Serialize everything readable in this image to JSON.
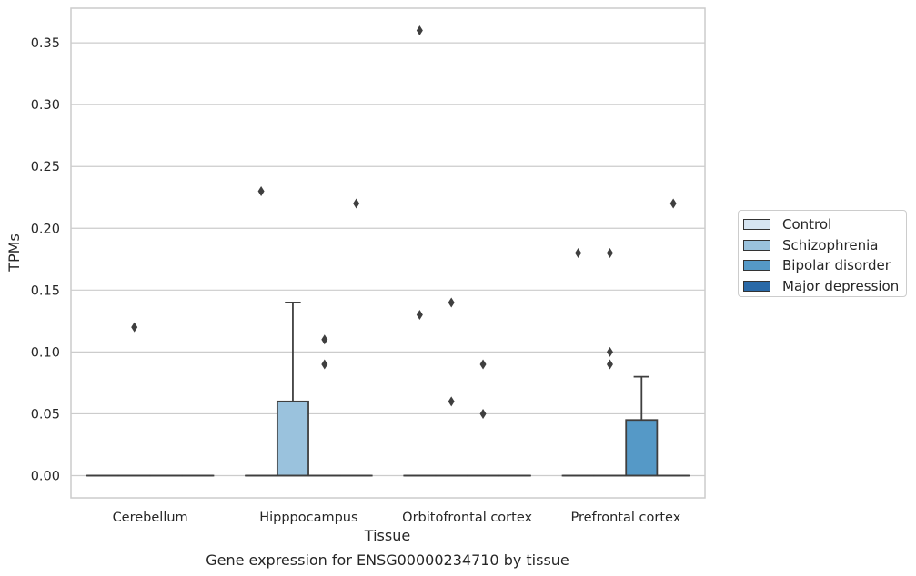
{
  "chart_data": {
    "type": "box",
    "title": "",
    "caption": "Gene expression for ENSG00000234710 by tissue",
    "xlabel": "Tissue",
    "ylabel": "TPMs",
    "ylim": [
      -0.018,
      0.378
    ],
    "yticks": [
      "0.00",
      "0.05",
      "0.10",
      "0.15",
      "0.20",
      "0.25",
      "0.30",
      "0.35"
    ],
    "categories": [
      "Cerebellum",
      "Hipppocampus",
      "Orbitofrontal cortex",
      "Prefrontal cortex"
    ],
    "grid": "horizontal",
    "legend_placement": "right",
    "series": [
      {
        "name": "Control",
        "color": "#d6e5f2",
        "boxes": [
          {
            "q1": 0,
            "median": 0,
            "q3": 0,
            "whisker_low": 0,
            "whisker_high": 0,
            "outliers": []
          },
          {
            "q1": 0,
            "median": 0,
            "q3": 0,
            "whisker_low": 0,
            "whisker_high": 0,
            "outliers": [
              0.23
            ]
          },
          {
            "q1": 0,
            "median": 0,
            "q3": 0,
            "whisker_low": 0,
            "whisker_high": 0,
            "outliers": [
              0.36,
              0.13
            ]
          },
          {
            "q1": 0,
            "median": 0,
            "q3": 0,
            "whisker_low": 0,
            "whisker_high": 0,
            "outliers": [
              0.18
            ]
          }
        ]
      },
      {
        "name": "Schizophrenia",
        "color": "#9ac2dd",
        "boxes": [
          {
            "q1": 0,
            "median": 0,
            "q3": 0,
            "whisker_low": 0,
            "whisker_high": 0,
            "outliers": [
              0.12
            ]
          },
          {
            "q1": 0,
            "median": 0,
            "q3": 0.06,
            "whisker_low": 0,
            "whisker_high": 0.14,
            "outliers": []
          },
          {
            "q1": 0,
            "median": 0,
            "q3": 0,
            "whisker_low": 0,
            "whisker_high": 0,
            "outliers": [
              0.14,
              0.06
            ]
          },
          {
            "q1": 0,
            "median": 0,
            "q3": 0,
            "whisker_low": 0,
            "whisker_high": 0,
            "outliers": [
              0.18,
              0.1,
              0.09
            ]
          }
        ]
      },
      {
        "name": "Bipolar disorder",
        "color": "#5599c7",
        "boxes": [
          {
            "q1": 0,
            "median": 0,
            "q3": 0,
            "whisker_low": 0,
            "whisker_high": 0,
            "outliers": []
          },
          {
            "q1": 0,
            "median": 0,
            "q3": 0,
            "whisker_low": 0,
            "whisker_high": 0,
            "outliers": [
              0.11,
              0.09
            ]
          },
          {
            "q1": 0,
            "median": 0,
            "q3": 0,
            "whisker_low": 0,
            "whisker_high": 0,
            "outliers": [
              0.09,
              0.05
            ]
          },
          {
            "q1": 0,
            "median": 0,
            "q3": 0.045,
            "whisker_low": 0,
            "whisker_high": 0.08,
            "outliers": []
          }
        ]
      },
      {
        "name": "Major depression",
        "color": "#2a69a7",
        "boxes": [
          {
            "q1": 0,
            "median": 0,
            "q3": 0,
            "whisker_low": 0,
            "whisker_high": 0,
            "outliers": []
          },
          {
            "q1": 0,
            "median": 0,
            "q3": 0,
            "whisker_low": 0,
            "whisker_high": 0,
            "outliers": [
              0.22
            ]
          },
          {
            "q1": 0,
            "median": 0,
            "q3": 0,
            "whisker_low": 0,
            "whisker_high": 0,
            "outliers": []
          },
          {
            "q1": 0,
            "median": 0,
            "q3": 0,
            "whisker_low": 0,
            "whisker_high": 0,
            "outliers": [
              0.22
            ]
          }
        ]
      }
    ]
  }
}
